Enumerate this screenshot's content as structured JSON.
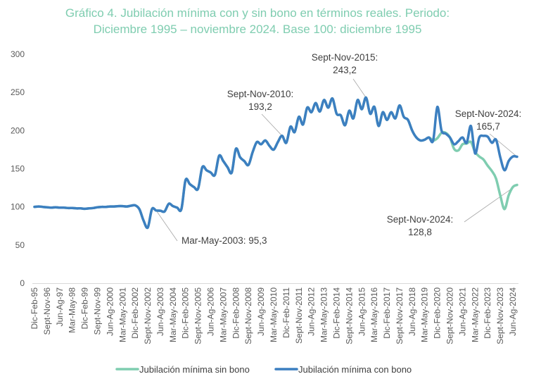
{
  "chart_data": {
    "type": "line",
    "title": [
      "Gráfico 4. Jubilación mínima con y sin bono en términos reales. Periodo:",
      "Diciembre 1995 – noviembre 2024. Base 100: diciembre 1995"
    ],
    "xlabel": "",
    "ylabel": "",
    "ylim": [
      0,
      300
    ],
    "yticks": [
      "0",
      "50",
      "100",
      "150",
      "200",
      "250",
      "300"
    ],
    "ytick_values": [
      0,
      50,
      100,
      150,
      200,
      250,
      300
    ],
    "grid": false,
    "legend_position": "bottom",
    "colors": {
      "sin_bono": "#7fcdb0",
      "con_bono": "#3c7fc0",
      "title": "#7fcdb0"
    },
    "x_tick_every": 3,
    "xticks": [
      "Dic-Feb-95",
      "Sept-Nov-96",
      "Jun-Ag-97",
      "Mar-May-98",
      "Dic-Feb-99",
      "Sept-Nov-99",
      "Jun-Ag-2000",
      "Mar-May-2001",
      "Dic-Feb-2002",
      "Sept-Nov-2002",
      "Jun-Ag-2003",
      "Mar-May-2004",
      "Dic-Feb-2005",
      "Sept-Nov-2005",
      "Jun-Ag-2006",
      "Mar-May-2007",
      "Dic-Feb-2008",
      "Sept-Nov-2008",
      "Jun-Ag-2009",
      "Mar-May-2010",
      "Dic-Feb-2011",
      "Sept-Nov-2011",
      "Jun-Ag-2012",
      "Mar-May-2013",
      "Dic-Feb-2014",
      "Sept-Nov-2014",
      "Jun-Ag-2015",
      "Mar-May-2016",
      "Dic-Feb-2017",
      "Sept-Nov-2017",
      "Jun-Ag-2018",
      "Mar-May-2019",
      "Dic-Feb-2020",
      "Sept-Nov-2020",
      "Jun-Ag-2021",
      "Mar-May-2022",
      "Dic-Feb-2023",
      "Sept-Nov-2023",
      "Jun-Ag-2024"
    ],
    "series": [
      {
        "name": "Jubilación mínima sin bono",
        "key": "sin_bono",
        "values": [
          100,
          100.5,
          100,
          99.5,
          99,
          99.5,
          99,
          99,
          98.5,
          98.5,
          98,
          98,
          97.5,
          98,
          98.5,
          99.5,
          100,
          100,
          100.5,
          100.5,
          101,
          101,
          100.5,
          101.5,
          102,
          97,
          82,
          73,
          97,
          95.3,
          95,
          94,
          104,
          101,
          99,
          97,
          135,
          130,
          126,
          124,
          152,
          148,
          145,
          142,
          167,
          160,
          152,
          145,
          176,
          165,
          160,
          155,
          172,
          185,
          182,
          187,
          180,
          175,
          185,
          193.2,
          184,
          205,
          198,
          218,
          208,
          230,
          224,
          236,
          225,
          240,
          230,
          242,
          222,
          220,
          207,
          226,
          216,
          240,
          228,
          243.2,
          222,
          231,
          206,
          224,
          214,
          224,
          216,
          233,
          218,
          214,
          200,
          191,
          187,
          188,
          191,
          187,
          190,
          197,
          197,
          191,
          176,
          174,
          182,
          183,
          185,
          172,
          166,
          162,
          154,
          147,
          137,
          115,
          97,
          115,
          126,
          128.8
        ]
      },
      {
        "name": "Jubilación mínima con bono",
        "key": "con_bono",
        "values": [
          100,
          100.5,
          100,
          99.5,
          99,
          99.5,
          99,
          99,
          98.5,
          98.5,
          98,
          98,
          97.5,
          98,
          98.5,
          99.5,
          100,
          100,
          100.5,
          100.5,
          101,
          101,
          100.5,
          101.5,
          102,
          97,
          82,
          73,
          97,
          95.3,
          95,
          94,
          104,
          101,
          99,
          97,
          135,
          130,
          126,
          124,
          152,
          148,
          145,
          142,
          167,
          160,
          152,
          145,
          176,
          165,
          160,
          155,
          172,
          185,
          182,
          187,
          180,
          175,
          185,
          193.2,
          184,
          205,
          198,
          218,
          208,
          230,
          224,
          236,
          225,
          240,
          230,
          242,
          222,
          220,
          207,
          226,
          216,
          240,
          228,
          243.2,
          222,
          231,
          206,
          224,
          214,
          224,
          216,
          233,
          218,
          214,
          200,
          191,
          187,
          188,
          191,
          187,
          231,
          200,
          196,
          191,
          182,
          186,
          191,
          184,
          206,
          170,
          191,
          193,
          192,
          184,
          188,
          165,
          148,
          160,
          166,
          165.7
        ]
      }
    ],
    "annotations": [
      {
        "label": "Mar-May-2003: 95,3",
        "lines": [
          "Mar-May-2003: 95,3"
        ],
        "index": 29,
        "value": 95.3,
        "series": "con_bono"
      },
      {
        "label": "Sept-Nov-2010: 193,2",
        "lines": [
          "Sept-Nov-2010:",
          "193,2"
        ],
        "index": 59,
        "value": 193.2,
        "series": "con_bono"
      },
      {
        "label": "Sept-Nov-2015: 243,2",
        "lines": [
          "Sept-Nov-2015:",
          "243,2"
        ],
        "index": 79,
        "value": 243.2,
        "series": "con_bono"
      },
      {
        "label": "Sept-Nov-2024: 165,7",
        "lines": [
          "Sept-Nov-2024:",
          "165,7"
        ],
        "index": 115,
        "value": 165.7,
        "series": "con_bono"
      },
      {
        "label": "Sept-Nov-2024: 128,8",
        "lines": [
          "Sept-Nov-2024:",
          "128,8"
        ],
        "index": 115,
        "value": 128.8,
        "series": "sin_bono"
      }
    ]
  }
}
